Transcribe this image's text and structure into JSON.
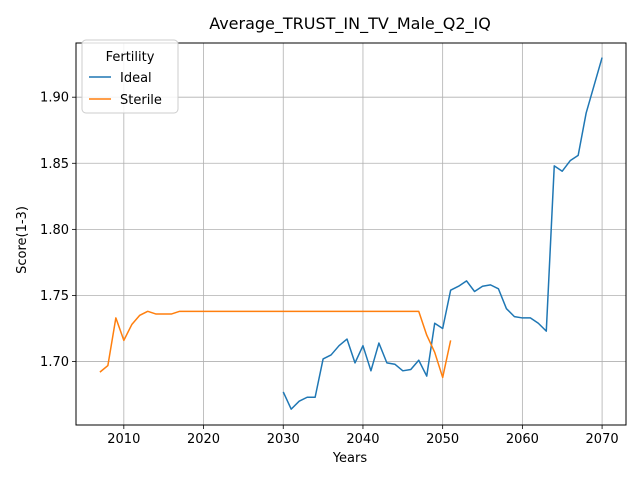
{
  "chart_data": {
    "type": "line",
    "title": "Average_TRUST_IN_TV_Male_Q2_IQ",
    "xlabel": "Years",
    "ylabel": "Score(1-3)",
    "xlim": [
      2004,
      2073
    ],
    "ylim": [
      1.652,
      1.941
    ],
    "xticks": [
      2010,
      2020,
      2030,
      2040,
      2050,
      2060,
      2070
    ],
    "yticks": [
      1.7,
      1.75,
      1.8,
      1.85,
      1.9
    ],
    "ytick_labels": [
      "1.70",
      "1.75",
      "1.80",
      "1.85",
      "1.90"
    ],
    "grid": true,
    "legend": {
      "title": "Fertility",
      "placement": "top-left"
    },
    "series": [
      {
        "name": "Ideal",
        "color": "#1f77b4",
        "x": [
          2030,
          2031,
          2032,
          2033,
          2034,
          2035,
          2036,
          2037,
          2038,
          2039,
          2040,
          2041,
          2042,
          2043,
          2044,
          2045,
          2046,
          2047,
          2048,
          2049,
          2050,
          2051,
          2052,
          2053,
          2054,
          2055,
          2056,
          2057,
          2058,
          2059,
          2060,
          2061,
          2062,
          2063,
          2064,
          2065,
          2066,
          2067,
          2068,
          2069,
          2070
        ],
        "y": [
          1.677,
          1.664,
          1.67,
          1.673,
          1.673,
          1.702,
          1.705,
          1.712,
          1.717,
          1.699,
          1.712,
          1.693,
          1.714,
          1.699,
          1.698,
          1.693,
          1.694,
          1.701,
          1.689,
          1.729,
          1.725,
          1.754,
          1.757,
          1.761,
          1.753,
          1.757,
          1.758,
          1.755,
          1.74,
          1.734,
          1.733,
          1.733,
          1.729,
          1.723,
          1.848,
          1.844,
          1.852,
          1.856,
          1.888,
          1.909,
          1.93
        ]
      },
      {
        "name": "Sterile",
        "color": "#ff7f0e",
        "x": [
          2007,
          2008,
          2009,
          2010,
          2011,
          2012,
          2013,
          2014,
          2015,
          2016,
          2017,
          2018,
          2019,
          2020,
          2021,
          2022,
          2023,
          2024,
          2025,
          2026,
          2027,
          2028,
          2029,
          2030,
          2031,
          2032,
          2033,
          2034,
          2035,
          2036,
          2037,
          2038,
          2039,
          2040,
          2041,
          2042,
          2043,
          2044,
          2045,
          2046,
          2047,
          2048,
          2049,
          2050,
          2051
        ],
        "y": [
          1.692,
          1.697,
          1.733,
          1.716,
          1.728,
          1.735,
          1.738,
          1.736,
          1.736,
          1.736,
          1.738,
          1.738,
          1.738,
          1.738,
          1.738,
          1.738,
          1.738,
          1.738,
          1.738,
          1.738,
          1.738,
          1.738,
          1.738,
          1.738,
          1.738,
          1.738,
          1.738,
          1.738,
          1.738,
          1.738,
          1.738,
          1.738,
          1.738,
          1.738,
          1.738,
          1.738,
          1.738,
          1.738,
          1.738,
          1.738,
          1.738,
          1.72,
          1.707,
          1.688,
          1.716
        ]
      }
    ]
  }
}
